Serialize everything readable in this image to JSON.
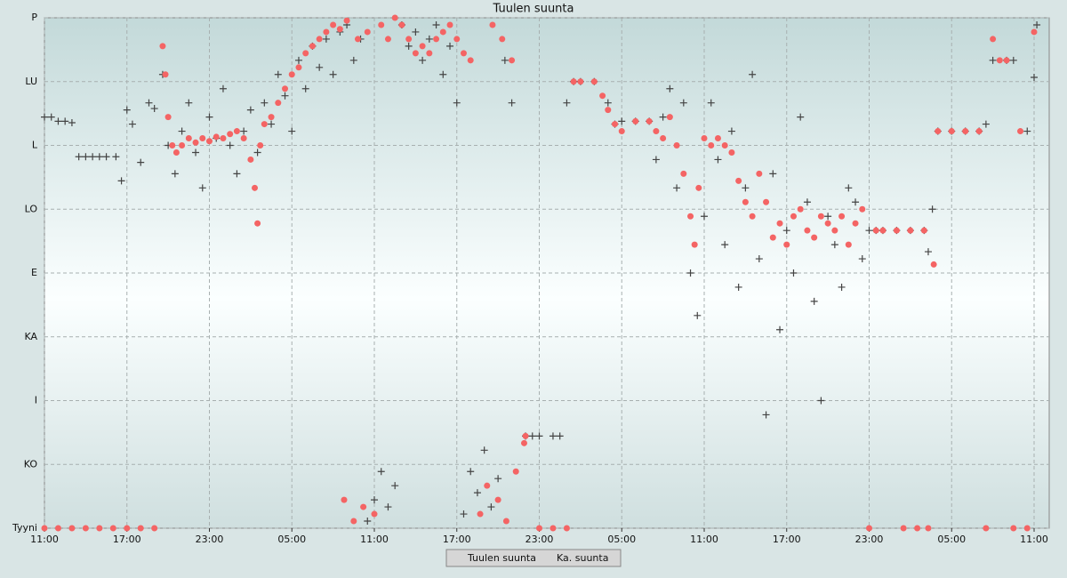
{
  "chart_data": {
    "type": "scatter",
    "title": "Tuulen suunta",
    "xlim": [
      0,
      73.1
    ],
    "ylim": [
      0,
      360
    ],
    "xticks": [
      {
        "value": 0,
        "label": "11:00"
      },
      {
        "value": 6,
        "label": "17:00"
      },
      {
        "value": 12,
        "label": "23:00"
      },
      {
        "value": 18,
        "label": "05:00"
      },
      {
        "value": 24,
        "label": "11:00"
      },
      {
        "value": 30,
        "label": "17:00"
      },
      {
        "value": 36,
        "label": "23:00"
      },
      {
        "value": 42,
        "label": "05:00"
      },
      {
        "value": 48,
        "label": "11:00"
      },
      {
        "value": 54,
        "label": "17:00"
      },
      {
        "value": 60,
        "label": "23:00"
      },
      {
        "value": 66,
        "label": "05:00"
      },
      {
        "value": 72,
        "label": "11:00"
      }
    ],
    "yticks": [
      {
        "value": 0,
        "label": "Tyyni"
      },
      {
        "value": 45,
        "label": "KO"
      },
      {
        "value": 90,
        "label": "I"
      },
      {
        "value": 135,
        "label": "KA"
      },
      {
        "value": 180,
        "label": "E"
      },
      {
        "value": 225,
        "label": "LO"
      },
      {
        "value": 270,
        "label": "L"
      },
      {
        "value": 315,
        "label": "LU"
      },
      {
        "value": 360,
        "label": "P"
      }
    ],
    "grid": true,
    "legend": "bottom",
    "series": [
      {
        "name": "Tuulen suunta",
        "color": "#444444",
        "marker": "plus",
        "x": [
          0,
          0.5,
          1,
          1.5,
          2,
          2.5,
          3,
          3.5,
          4,
          4.5,
          5.2,
          5.6,
          6,
          6.4,
          7,
          7.6,
          8,
          8.6,
          9,
          9.5,
          10,
          10.5,
          11,
          11.5,
          12,
          12.5,
          13,
          13.5,
          14,
          14.5,
          15,
          15.5,
          16,
          16.5,
          17,
          17.5,
          18,
          18.5,
          19,
          19.5,
          20,
          20.5,
          21,
          21.5,
          22,
          22.5,
          23,
          23.5,
          24,
          24.5,
          25,
          25.5,
          26,
          26.5,
          27,
          27.5,
          28,
          28.5,
          29,
          29.5,
          30,
          30.5,
          31,
          31.5,
          32,
          32.5,
          33,
          33.5,
          34,
          35,
          35.5,
          36,
          37,
          37.5,
          38,
          38.5,
          39,
          40,
          41,
          41.5,
          42,
          43,
          44,
          44.5,
          45,
          45.5,
          46,
          46.5,
          47,
          47.5,
          48,
          48.5,
          49,
          49.5,
          50,
          50.5,
          51,
          51.5,
          52,
          52.5,
          53,
          53.5,
          54,
          54.5,
          55,
          55.5,
          56,
          56.5,
          57,
          57.5,
          58,
          58.5,
          59,
          59.5,
          60,
          60.5,
          61,
          62,
          63,
          64,
          64.3,
          64.6,
          65,
          66,
          67,
          68,
          68.5,
          69,
          70,
          70.5,
          71.5,
          72,
          72.2
        ],
        "values": [
          290,
          290,
          287,
          287,
          286,
          262,
          262,
          262,
          262,
          262,
          262,
          245,
          295,
          285,
          258,
          300,
          296,
          320,
          270,
          250,
          280,
          300,
          265,
          240,
          290,
          275,
          310,
          270,
          250,
          280,
          295,
          265,
          300,
          285,
          320,
          305,
          280,
          330,
          310,
          340,
          325,
          345,
          320,
          350,
          355,
          330,
          345,
          5,
          20,
          40,
          15,
          30,
          355,
          340,
          350,
          330,
          345,
          355,
          320,
          340,
          300,
          10,
          40,
          25,
          55,
          15,
          35,
          330,
          300,
          65,
          65,
          65,
          65,
          65,
          300,
          315,
          315,
          315,
          300,
          285,
          287,
          287,
          287,
          260,
          290,
          310,
          240,
          300,
          180,
          150,
          220,
          300,
          260,
          200,
          280,
          170,
          240,
          320,
          190,
          80,
          250,
          140,
          210,
          180,
          290,
          230,
          160,
          90,
          220,
          200,
          170,
          240,
          230,
          190,
          210,
          210,
          210,
          210,
          210,
          210,
          195,
          225,
          280,
          280,
          280,
          280,
          285,
          330,
          330,
          330,
          280,
          318,
          355
        ]
      },
      {
        "name": "Ka. suunta",
        "color": "#f46464",
        "marker": "dot",
        "x": [
          0,
          1,
          2,
          3,
          4,
          5,
          6,
          7,
          8,
          8.6,
          8.8,
          9,
          9.3,
          9.6,
          10,
          10.5,
          11,
          11.5,
          12,
          12.5,
          13,
          13.5,
          14,
          14.5,
          15,
          15.3,
          15.5,
          15.7,
          16,
          16.5,
          17,
          17.5,
          18,
          18.5,
          19,
          19.5,
          20,
          20.5,
          21,
          21.5,
          21.8,
          22,
          22.5,
          22.8,
          23.2,
          23.5,
          24,
          24.5,
          25,
          25.5,
          26,
          26.5,
          27,
          27.5,
          28,
          28.5,
          29,
          29.5,
          30,
          30.5,
          31,
          31.7,
          32.2,
          32.6,
          33,
          33.3,
          33.6,
          34,
          34.3,
          34.9,
          35,
          36,
          37,
          38,
          38.5,
          39,
          40,
          40.6,
          41,
          41.5,
          42,
          43,
          44,
          44.5,
          45,
          45.5,
          46,
          46.5,
          47,
          47.3,
          47.6,
          48,
          48.5,
          49,
          49.5,
          50,
          50.5,
          51,
          51.5,
          52,
          52.5,
          53,
          53.5,
          54,
          54.5,
          55,
          55.5,
          56,
          56.5,
          57,
          57.5,
          58,
          58.5,
          59,
          59.5,
          60,
          60.5,
          61,
          62,
          62.5,
          63,
          63.5,
          64,
          64.3,
          64.7,
          65,
          66,
          67,
          68,
          68.5,
          69,
          69.5,
          70,
          70.5,
          71,
          71.5,
          72
        ],
        "values": [
          0,
          0,
          0,
          0,
          0,
          0,
          0,
          0,
          0,
          340,
          320,
          290,
          270,
          265,
          270,
          275,
          272,
          275,
          273,
          276,
          275,
          278,
          280,
          275,
          260,
          240,
          215,
          270,
          285,
          290,
          300,
          310,
          320,
          325,
          335,
          340,
          345,
          350,
          355,
          352,
          20,
          358,
          5,
          345,
          15,
          350,
          10,
          355,
          345,
          360,
          355,
          345,
          335,
          340,
          335,
          345,
          350,
          355,
          345,
          335,
          330,
          10,
          30,
          355,
          20,
          345,
          5,
          330,
          40,
          60,
          65,
          0,
          0,
          0,
          315,
          315,
          315,
          305,
          295,
          285,
          280,
          287,
          287,
          280,
          275,
          290,
          270,
          250,
          220,
          200,
          240,
          275,
          270,
          275,
          270,
          265,
          245,
          230,
          220,
          250,
          230,
          205,
          215,
          200,
          220,
          225,
          210,
          205,
          220,
          215,
          210,
          220,
          200,
          215,
          225,
          0,
          210,
          210,
          210,
          0,
          210,
          0,
          210,
          0,
          186,
          280,
          280,
          280,
          280,
          0,
          345,
          330,
          330,
          0,
          280,
          0,
          350
        ]
      }
    ]
  }
}
